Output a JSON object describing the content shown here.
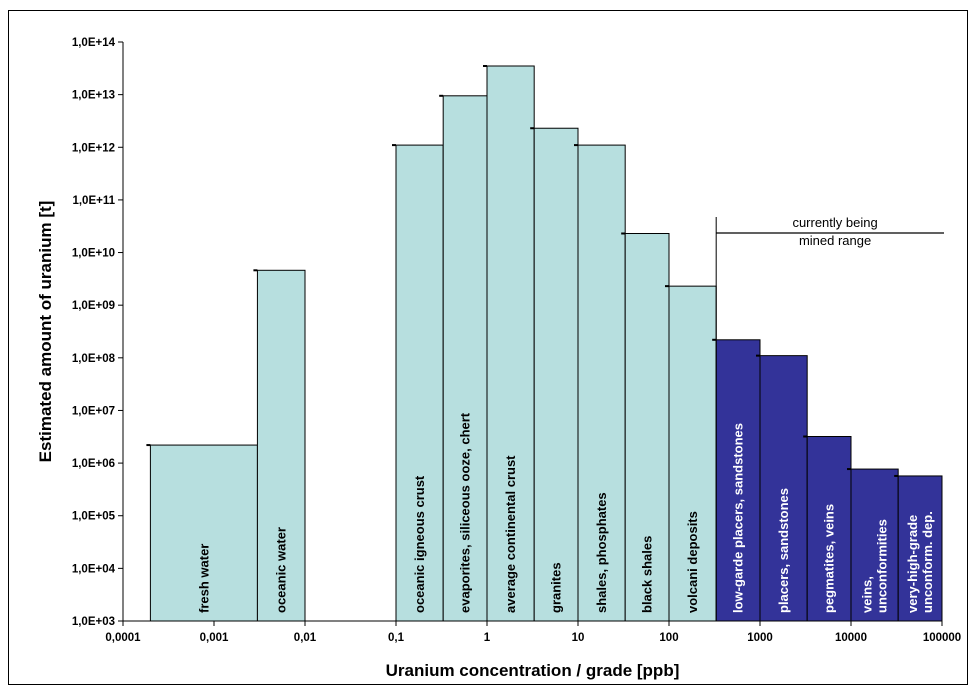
{
  "chart_data": {
    "type": "bar",
    "title": "",
    "xlabel": "Uranium concentration / grade [ppb]",
    "ylabel": "Estimated amount of uranium [t]",
    "x_scale": "log",
    "y_scale": "log",
    "xlim": [
      0.0001,
      100000
    ],
    "ylim": [
      1000,
      100000000000000
    ],
    "x_ticks": [
      "0,0001",
      "0,001",
      "0,01",
      "0,1",
      "1",
      "10",
      "100",
      "1000",
      "10000",
      "100000"
    ],
    "y_ticks": [
      "1,0E+03",
      "1,0E+04",
      "1,0E+05",
      "1,0E+06",
      "1,0E+07",
      "1,0E+08",
      "1,0E+09",
      "1,0E+10",
      "1,0E+11",
      "1,0E+12",
      "1,0E+13",
      "1,0E+14"
    ],
    "bars": [
      {
        "label": "fresh water",
        "x_from": 0.0002,
        "x_to": 0.003,
        "value": 2200000,
        "group": "natural"
      },
      {
        "label": "oceanic water",
        "x_from": 0.003,
        "x_to": 0.01,
        "value": 4600000000,
        "group": "natural"
      },
      {
        "label": "oceanic igneous crust",
        "x_from": 0.1,
        "x_to": 0.33,
        "value": 1100000000000,
        "group": "natural"
      },
      {
        "label": "evaporites, siliceous ooze, chert",
        "x_from": 0.33,
        "x_to": 1,
        "value": 9500000000000,
        "group": "natural"
      },
      {
        "label": "average continental crust",
        "x_from": 1,
        "x_to": 3.3,
        "value": 35000000000000,
        "group": "natural"
      },
      {
        "label": "granites",
        "x_from": 3.3,
        "x_to": 10,
        "value": 2300000000000,
        "group": "natural"
      },
      {
        "label": "shales, phosphates",
        "x_from": 10,
        "x_to": 33,
        "value": 1100000000000,
        "group": "natural"
      },
      {
        "label": "black shales",
        "x_from": 33,
        "x_to": 100,
        "value": 23000000000,
        "group": "natural"
      },
      {
        "label": "volcani deposits",
        "x_from": 100,
        "x_to": 330,
        "value": 2300000000,
        "group": "natural"
      },
      {
        "label": "low-garde placers, sandstones",
        "x_from": 330,
        "x_to": 1000,
        "value": 220000000,
        "group": "mined"
      },
      {
        "label": "placers, sandstones",
        "x_from": 1000,
        "x_to": 3300,
        "value": 110000000,
        "group": "mined"
      },
      {
        "label": "pegmatites, veins",
        "x_from": 3300,
        "x_to": 10000,
        "value": 3200000,
        "group": "mined"
      },
      {
        "label": [
          "veins,",
          "unconformities"
        ],
        "x_from": 10000,
        "x_to": 33000,
        "value": 770000,
        "group": "mined"
      },
      {
        "label": [
          "very-high-grade",
          "unconform. dep."
        ],
        "x_from": 33000,
        "x_to": 100000,
        "value": 570000,
        "group": "mined"
      }
    ],
    "annotation": {
      "lines": [
        "currently being",
        "mined range"
      ],
      "x_from": 330,
      "x_to": 100000
    },
    "colors": {
      "natural": "#b7dfdf",
      "mined": "#333399",
      "natural_text": "#000000",
      "mined_text": "#ffffff"
    },
    "grid": false,
    "legend": "none"
  }
}
